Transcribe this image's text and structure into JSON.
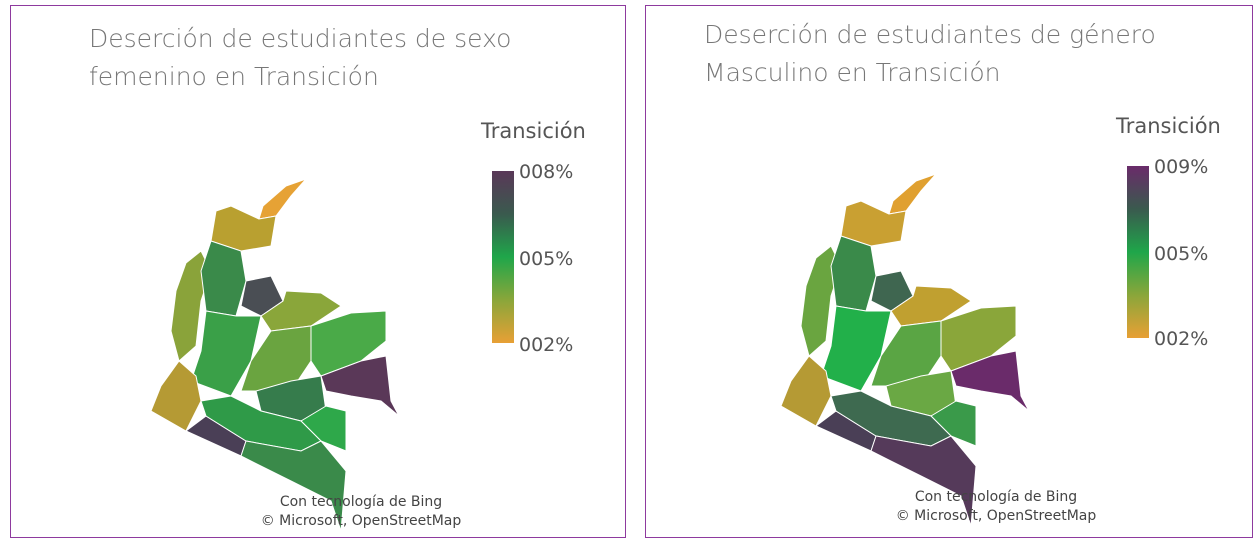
{
  "panels": [
    {
      "title": "Deserción de estudiantes de sexo femenino en Transición",
      "legend": {
        "title": "Transición",
        "labels": [
          "008%",
          "005%",
          "002%"
        ]
      },
      "attribution": [
        "Con tecnología de Bing",
        "© Microsoft, OpenStreetMap"
      ]
    },
    {
      "title": "Deserción de estudiantes de género Masculino en Transición",
      "legend": {
        "title": "Transición",
        "labels": [
          "009%",
          "005%",
          "002%"
        ]
      },
      "attribution": [
        "Con tecnología de Bing",
        "© Microsoft, OpenStreetMap"
      ]
    }
  ]
}
